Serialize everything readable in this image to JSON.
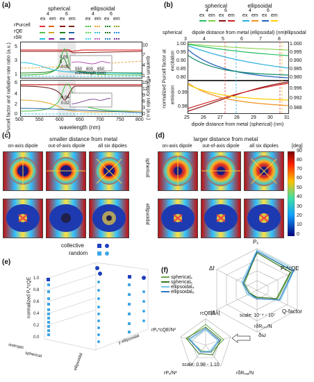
{
  "panel_a": {
    "label": "(a)",
    "legend": {
      "spherical": "spherical",
      "ellipsoidal": "ellipsoidal",
      "n4": "4",
      "n6": "6",
      "ex": "ex",
      "em": "em",
      "rows": [
        "rPurcell",
        "rQE",
        "rδR"
      ]
    },
    "ylabel_left": "Purcell factor and radiative rate ratio (a.u.)",
    "ylabel_right": "quantum efficiency ratio (a.u.)",
    "xlabel": "wavelength (nm)",
    "xticks": [
      "500",
      "550",
      "600",
      "650",
      "700",
      "750",
      "800"
    ],
    "top_left_ticks": [
      "1",
      "3",
      "5"
    ],
    "top_right_ticks": [
      "1",
      "4",
      "7",
      "10"
    ],
    "bot_left_ticks": [
      "0",
      "2",
      "4",
      "6"
    ],
    "bot_right_ticks": [
      "0",
      "3",
      "6",
      "9",
      "12",
      "15"
    ],
    "inset_top_ticks": [
      "0.05",
      "0",
      "-0.05"
    ],
    "inset_bot_ticks": [
      "0.04",
      "0.02"
    ],
    "inset_x": [
      "550",
      "600",
      "650"
    ],
    "inset_xlabel": "wavelength (nm)"
  },
  "panel_b": {
    "label": "(b)",
    "legend": {
      "spherical": "spherical",
      "ellipsoidal": "ellipsoidal",
      "n4": "4",
      "n6": "6",
      "ex": "ex",
      "em": "em"
    },
    "top_axis_label": "dipole distance from metal (ellipsoidal) (nm)",
    "top_axis_ticks": [
      "3",
      "4",
      "5",
      "6",
      "7",
      "8"
    ],
    "side_spherical": "spherical",
    "side_ellipsoidal": "ellipsoidal",
    "ylabel": "normalized Purcell factor at",
    "ylabel_top": "excitation",
    "ylabel_bottom": "emission",
    "left_top_ticks": [
      "1.00",
      "0.95",
      "0.90",
      "0.85",
      "0.80"
    ],
    "right_top_ticks": [
      "1.000",
      "0.995",
      "0.990",
      "0.985",
      "0.980"
    ],
    "left_bot_ticks": [
      "0.99",
      "0.98"
    ],
    "right_bot_ticks": [
      "0.996",
      "0.992",
      "0.988"
    ],
    "xticks": [
      "25",
      "26",
      "27",
      "28",
      "29",
      "30",
      "31"
    ],
    "xlabel": "dipole distance from metal (spherical) (nm)"
  },
  "panel_c": {
    "label": "(c)",
    "title": "smaller distance from metal",
    "cols": [
      "on-axis dipole",
      "out-of-axis dipole",
      "all six dipoles"
    ],
    "rows": [
      "spherical",
      "ellipsoidal"
    ]
  },
  "panel_d": {
    "label": "(d)",
    "title": "larger distance from metal",
    "cols": [
      "on-axis dipole",
      "out-of-axis dipole",
      "all six dipoles"
    ],
    "rows": [
      "spherical",
      "ellipsoidal"
    ]
  },
  "colorbar": {
    "unit": "[deg]",
    "ticks": [
      "90",
      "80",
      "70",
      "60",
      "50",
      "40",
      "30",
      "20",
      "10",
      "0"
    ]
  },
  "panel_e": {
    "label": "(e)",
    "legend": [
      "collective",
      "random"
    ],
    "zlabel": "normalized Pₓ*cQE",
    "zticks": [
      "1.0",
      "0.8",
      "0.6",
      "0.4",
      "0.2",
      "0.0"
    ],
    "x_labels": [
      "spherical",
      "ellipsoidal",
      "isotropic",
      "y-ellipsoidal"
    ],
    "colors": {
      "collective": "#1f3fbf",
      "random": "#3ea6e6"
    }
  },
  "panel_f": {
    "label": "(f)",
    "legend": [
      "spherical₄",
      "spherical₆",
      "ellipsoidal₄",
      "ellipsoidal₆"
    ],
    "big_axes": [
      "Pₓ",
      "Pₓ*cQE",
      "Q-factor",
      "δω",
      "|Δλ|",
      "Δf"
    ],
    "big_scale": "scale: 10⁻⁴ - 10⁷",
    "small_axes": [
      "rcQE/1",
      "rδR₁₀ₜ/N",
      "rδRᵣₐₑ/N",
      "rPₓ/N²",
      "rPₓ*cQE/N²"
    ],
    "small_scale": "scale: 0.98 - 1.10",
    "colors": [
      "#6aa84f",
      "#38761d",
      "#76c7e8",
      "#2b78c2"
    ]
  }
}
